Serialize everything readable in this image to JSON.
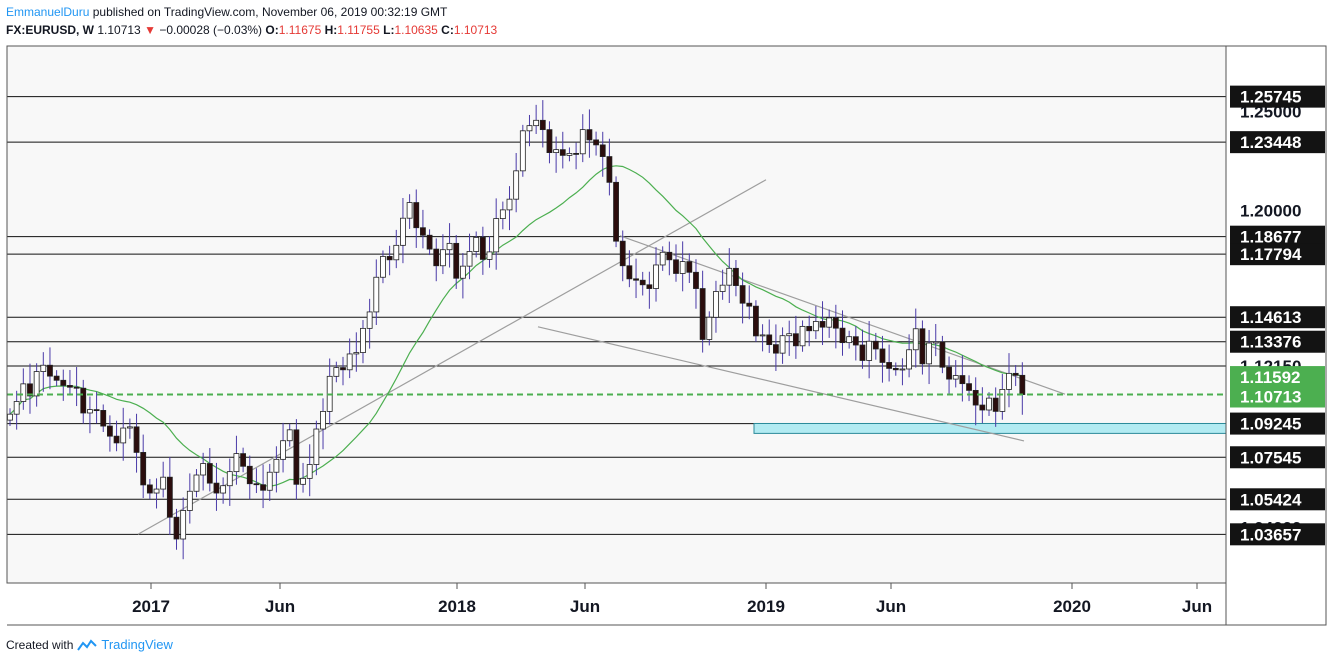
{
  "header": {
    "author": "EmmanuelDuru",
    "published_text": "published on TradingView.com, November 06, 2019 00:32:19 GMT",
    "symbol": "FX:EURUSD, W",
    "last": "1.10713",
    "change": "−0.00028 (−0.03%)",
    "o_label": "O:",
    "o_value": "1.11675",
    "h_label": "H:",
    "h_value": "1.11755",
    "l_label": "L:",
    "l_value": "1.10635",
    "c_label": "C:",
    "c_value": "1.10713"
  },
  "footer": {
    "created_with": "Created with",
    "brand": "TradingView"
  },
  "colors": {
    "bull": "#ffffff",
    "bear": "#2b0d0d",
    "wick": "#4a3aa8",
    "ma": "#4caf50",
    "current": "#4caf50",
    "zone": "#b2ebf2",
    "trend": "#9e9e9e"
  },
  "chart_data": {
    "type": "candlestick",
    "symbol": "FX:EURUSD",
    "timeframe": "W",
    "ylim": [
      1.012,
      1.283
    ],
    "x_ticks": [
      "2017",
      "Jun",
      "2018",
      "Jun",
      "2019",
      "Jun",
      "2020",
      "Jun"
    ],
    "level_labels": [
      "1.25745",
      "1.25000",
      "1.23448",
      "1.20000",
      "1.18677",
      "1.17794",
      "1.14613",
      "1.13376",
      "1.12150",
      "1.11592",
      "1.10713",
      "1.09245",
      "1.07545",
      "1.05424",
      "1.04000",
      "1.03657"
    ],
    "horizontal_levels": [
      1.25745,
      1.23448,
      1.18677,
      1.17794,
      1.14613,
      1.13376,
      1.1215,
      1.09245,
      1.07545,
      1.05424,
      1.03657
    ],
    "current_price": 1.10713,
    "current_price_label": "1.10713",
    "ma_value_label": "1.11592",
    "support_zone": [
      1.0875,
      1.0925
    ],
    "closes": [
      1.0972,
      1.1036,
      1.1125,
      1.1064,
      1.1187,
      1.1219,
      1.1164,
      1.1143,
      1.1117,
      1.1108,
      1.1103,
      1.0978,
      1.0995,
      1.0991,
      1.0912,
      1.0861,
      1.0827,
      1.0902,
      1.0908,
      1.0779,
      1.0615,
      1.0574,
      1.0594,
      1.0654,
      1.0452,
      1.0342,
      1.0486,
      1.0583,
      1.0665,
      1.0723,
      1.0624,
      1.0574,
      1.0611,
      1.0682,
      1.0773,
      1.0709,
      1.0621,
      1.0616,
      1.0588,
      1.0679,
      1.0744,
      1.0838,
      1.0893,
      1.0618,
      1.0648,
      1.0718,
      1.0897,
      1.0986,
      1.1163,
      1.1207,
      1.1196,
      1.1276,
      1.1283,
      1.1405,
      1.1488,
      1.1663,
      1.1768,
      1.1751,
      1.1824,
      1.1961,
      1.204,
      1.1913,
      1.1875,
      1.1805,
      1.1721,
      1.1802,
      1.1834,
      1.1658,
      1.1719,
      1.1793,
      1.1864,
      1.1753,
      1.1791,
      1.1959,
      1.2003,
      1.2057,
      1.22,
      1.2402,
      1.2428,
      1.2455,
      1.2408,
      1.2292,
      1.2307,
      1.2278,
      1.2288,
      1.2286,
      1.2408,
      1.2356,
      1.2331,
      1.2272,
      1.2142,
      1.1845,
      1.1721,
      1.1655,
      1.1648,
      1.1625,
      1.1606,
      1.1725,
      1.1789,
      1.1751,
      1.1682,
      1.1742,
      1.1688,
      1.1606,
      1.1349,
      1.1461,
      1.1591,
      1.1623,
      1.1708,
      1.1621,
      1.1532,
      1.1517,
      1.1367,
      1.1372,
      1.1323,
      1.128,
      1.1368,
      1.1378,
      1.1317,
      1.1415,
      1.1393,
      1.144,
      1.1411,
      1.1458,
      1.1406,
      1.1333,
      1.1363,
      1.1321,
      1.1243,
      1.134,
      1.1301,
      1.1233,
      1.1203,
      1.1196,
      1.12,
      1.1297,
      1.1403,
      1.1226,
      1.1331,
      1.1337,
      1.1209,
      1.1149,
      1.1167,
      1.1126,
      1.1092,
      1.1018,
      1.0993,
      1.1053,
      1.0986,
      1.1097,
      1.1178,
      1.1168,
      1.1071
    ]
  }
}
